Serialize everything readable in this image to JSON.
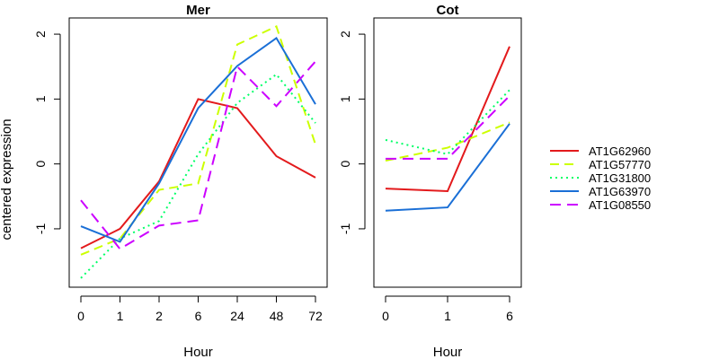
{
  "ylabel": "centered expression",
  "chart_data": [
    {
      "type": "line",
      "title": "Mer",
      "xlabel": "Hour",
      "categories": [
        "0",
        "1",
        "2",
        "6",
        "24",
        "48",
        "72"
      ],
      "ylim": [
        -1.9,
        2.25
      ],
      "yticks": [
        -1,
        0,
        1,
        2
      ],
      "grid": false,
      "series": [
        {
          "name": "AT1G62960",
          "color": "#e31a1c",
          "dash": "solid",
          "values": [
            -1.3,
            -1.0,
            -0.27,
            1.0,
            0.86,
            0.12,
            -0.21
          ]
        },
        {
          "name": "AT1G57770",
          "color": "#ccff00",
          "dash": "dashed",
          "values": [
            -1.4,
            -1.15,
            -0.4,
            -0.3,
            1.84,
            2.12,
            0.3
          ]
        },
        {
          "name": "AT1G31800",
          "color": "#00ff66",
          "dash": "dotted",
          "values": [
            -1.76,
            -1.15,
            -0.88,
            0.15,
            0.94,
            1.38,
            0.63
          ]
        },
        {
          "name": "AT1G63970",
          "color": "#1a6fd6",
          "dash": "solid",
          "values": [
            -0.96,
            -1.2,
            -0.3,
            0.86,
            1.51,
            1.94,
            0.92
          ]
        },
        {
          "name": "AT1G08550",
          "color": "#cc00ff",
          "dash": "longdash",
          "values": [
            -0.56,
            -1.31,
            -0.95,
            -0.87,
            1.5,
            0.89,
            1.58
          ]
        }
      ]
    },
    {
      "type": "line",
      "title": "Cot",
      "xlabel": "Hour",
      "categories": [
        "0",
        "1",
        "6"
      ],
      "ylim": [
        -1.9,
        2.25
      ],
      "yticks": [
        -1,
        0,
        1,
        2
      ],
      "grid": false,
      "series": [
        {
          "name": "AT1G62960",
          "color": "#e31a1c",
          "dash": "solid",
          "values": [
            -0.38,
            -0.42,
            1.81
          ]
        },
        {
          "name": "AT1G57770",
          "color": "#ccff00",
          "dash": "dashed",
          "values": [
            0.05,
            0.25,
            0.64
          ]
        },
        {
          "name": "AT1G31800",
          "color": "#00ff66",
          "dash": "dotted",
          "values": [
            0.37,
            0.15,
            1.14
          ]
        },
        {
          "name": "AT1G63970",
          "color": "#1a6fd6",
          "dash": "solid",
          "values": [
            -0.72,
            -0.67,
            0.62
          ]
        },
        {
          "name": "AT1G08550",
          "color": "#cc00ff",
          "dash": "longdash",
          "values": [
            0.08,
            0.08,
            1.05
          ]
        }
      ]
    }
  ],
  "legend": {
    "placement": "right",
    "entries": [
      {
        "label": "AT1G62960",
        "color": "#e31a1c",
        "dash": "solid"
      },
      {
        "label": "AT1G57770",
        "color": "#ccff00",
        "dash": "dashed"
      },
      {
        "label": "AT1G31800",
        "color": "#00ff66",
        "dash": "dotted"
      },
      {
        "label": "AT1G63970",
        "color": "#1a6fd6",
        "dash": "solid"
      },
      {
        "label": "AT1G08550",
        "color": "#cc00ff",
        "dash": "longdash"
      }
    ]
  }
}
